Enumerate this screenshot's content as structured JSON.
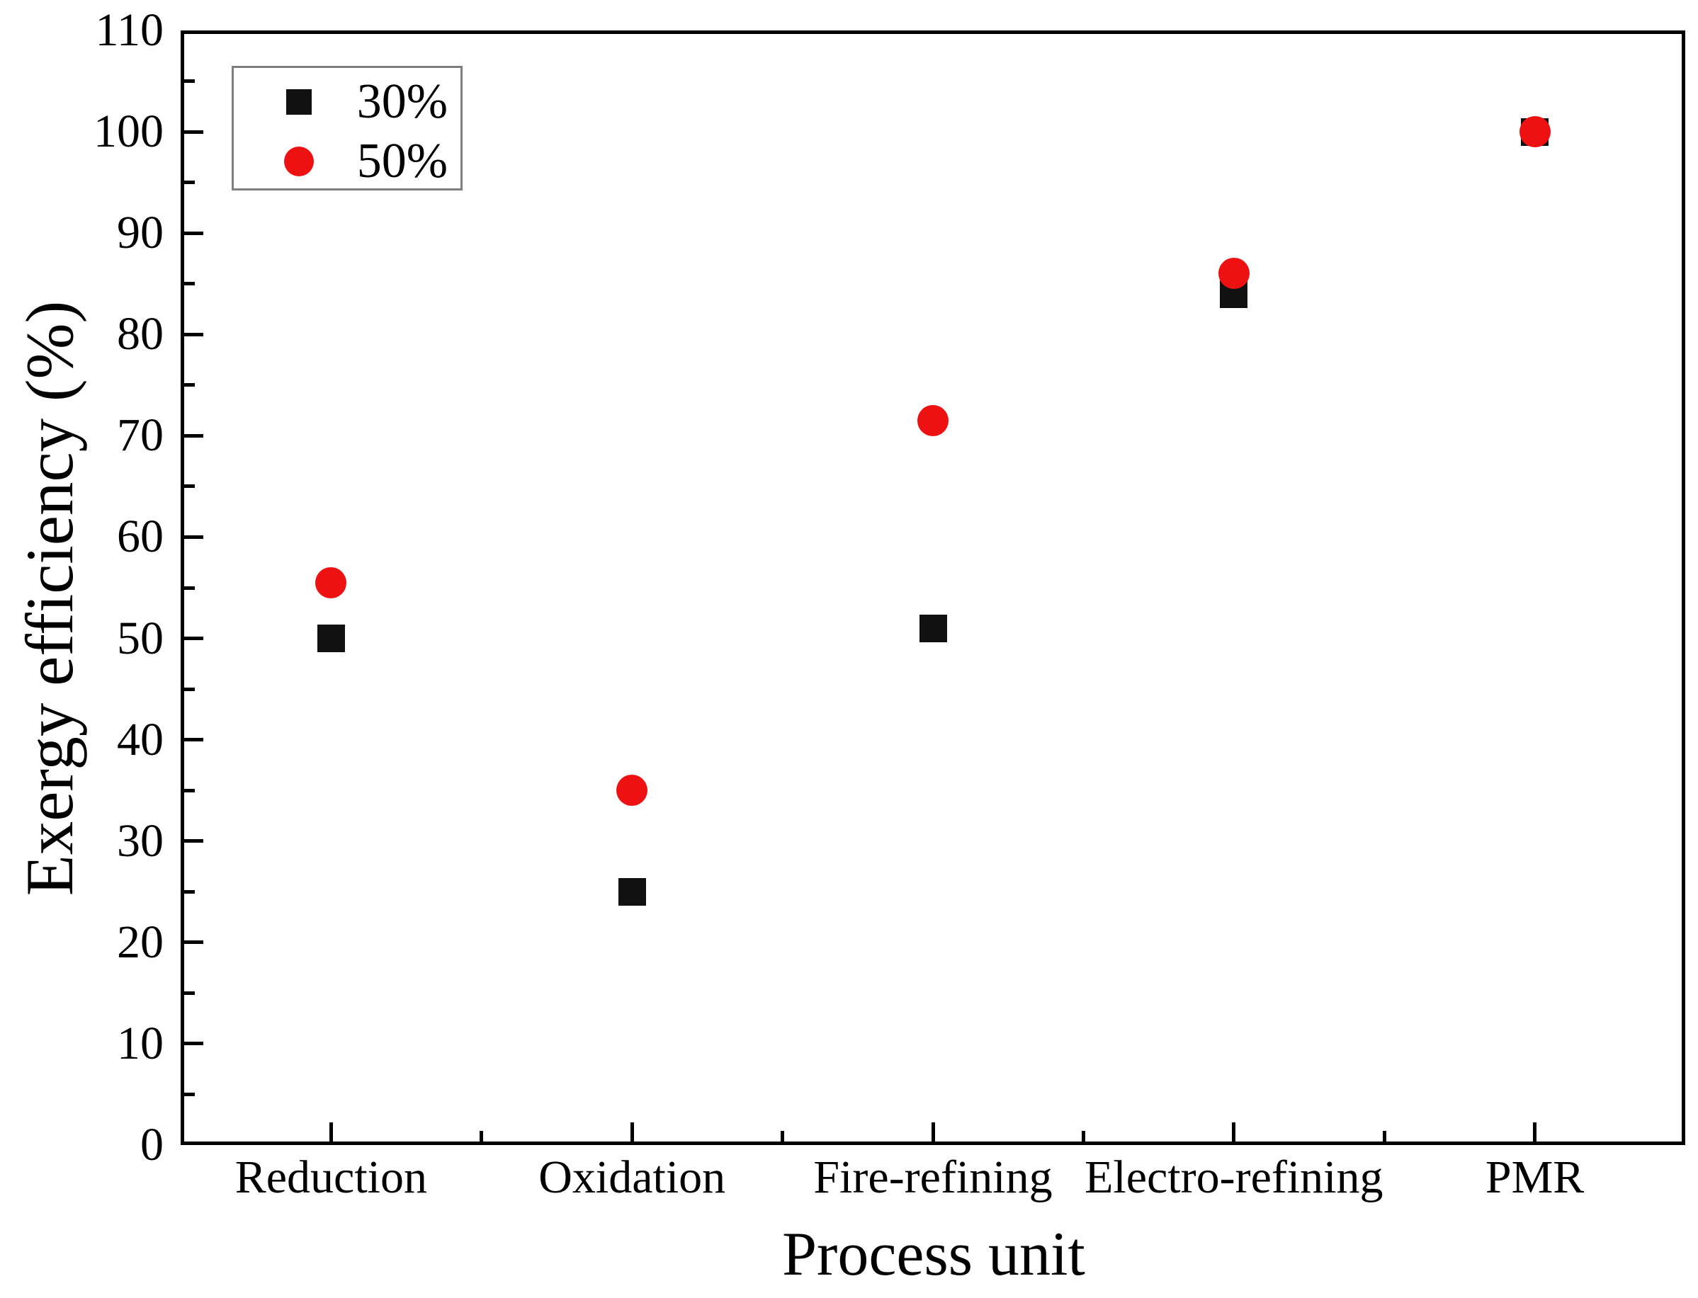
{
  "figure": {
    "background": "#ffffff",
    "axis_color": "#000000",
    "legend_border_color": "#7f7f7f"
  },
  "chart_data": {
    "type": "scatter",
    "title": "",
    "xlabel": "Process unit",
    "ylabel": "Exergy efficiency (%)",
    "categories": [
      "Reduction",
      "Oxidation",
      "Fire-refining",
      "Electro-refining",
      "PMR"
    ],
    "series": [
      {
        "name": "30%",
        "marker": "square",
        "color": "#111111",
        "values": [
          50,
          25,
          51,
          84,
          100
        ]
      },
      {
        "name": "50%",
        "marker": "circle",
        "color": "#ee1111",
        "values": [
          55.5,
          35,
          71.5,
          86,
          100
        ]
      }
    ],
    "ylim": [
      0,
      110
    ],
    "y_major_step": 10,
    "y_minor_step": 5,
    "y_tick_labels": [
      "0",
      "10",
      "20",
      "30",
      "40",
      "50",
      "60",
      "70",
      "80",
      "90",
      "100",
      "110"
    ],
    "grid": false,
    "legend_position": "top-left"
  }
}
